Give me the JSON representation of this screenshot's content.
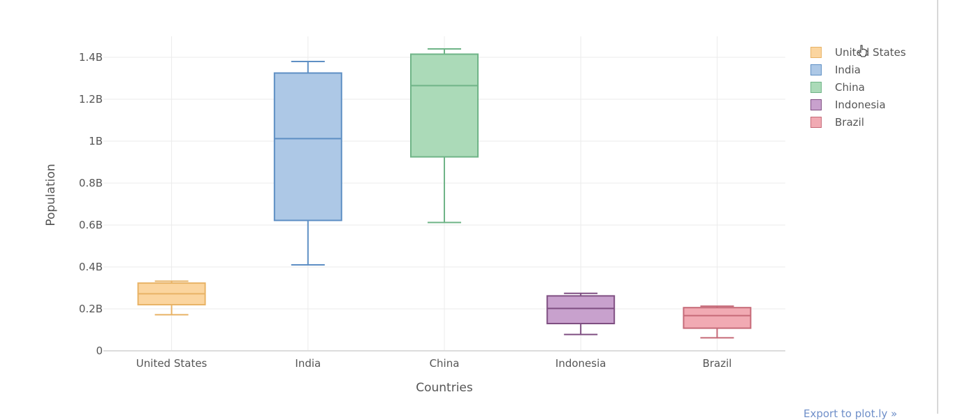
{
  "chart_data": {
    "type": "box",
    "xlabel": "Countries",
    "ylabel": "Population",
    "ylim": [
      0,
      1500000000
    ],
    "yticks": [
      {
        "value": 0,
        "label": "0"
      },
      {
        "value": 200000000,
        "label": "0.2B"
      },
      {
        "value": 400000000,
        "label": "0.4B"
      },
      {
        "value": 600000000,
        "label": "0.6B"
      },
      {
        "value": 800000000,
        "label": "0.8B"
      },
      {
        "value": 1000000000,
        "label": "1B"
      },
      {
        "value": 1200000000,
        "label": "1.2B"
      },
      {
        "value": 1400000000,
        "label": "1.4B"
      }
    ],
    "grid": true,
    "legend_position": "top-right",
    "categories": [
      "United States",
      "India",
      "China",
      "Indonesia",
      "Brazil"
    ],
    "series": [
      {
        "name": "United States",
        "color": "#e8b366",
        "fill": "#fbd59f",
        "min": 172000000,
        "q1": 220000000,
        "median": 272000000,
        "q3": 323000000,
        "max": 332000000
      },
      {
        "name": "India",
        "color": "#5e8fc4",
        "fill": "#adc8e6",
        "min": 410000000,
        "q1": 622000000,
        "median": 1012000000,
        "q3": 1325000000,
        "max": 1380000000
      },
      {
        "name": "China",
        "color": "#6fb487",
        "fill": "#abdab8",
        "min": 612000000,
        "q1": 925000000,
        "median": 1265000000,
        "q3": 1415000000,
        "max": 1440000000
      },
      {
        "name": "Indonesia",
        "color": "#7f4f82",
        "fill": "#c8a1cd",
        "min": 78000000,
        "q1": 130000000,
        "median": 202000000,
        "q3": 262000000,
        "max": 274000000
      },
      {
        "name": "Brazil",
        "color": "#c66a78",
        "fill": "#f1aab3",
        "min": 62000000,
        "q1": 108000000,
        "median": 168000000,
        "q3": 206000000,
        "max": 213000000
      }
    ]
  },
  "footer": {
    "link_text": "Export to plot.ly »"
  }
}
